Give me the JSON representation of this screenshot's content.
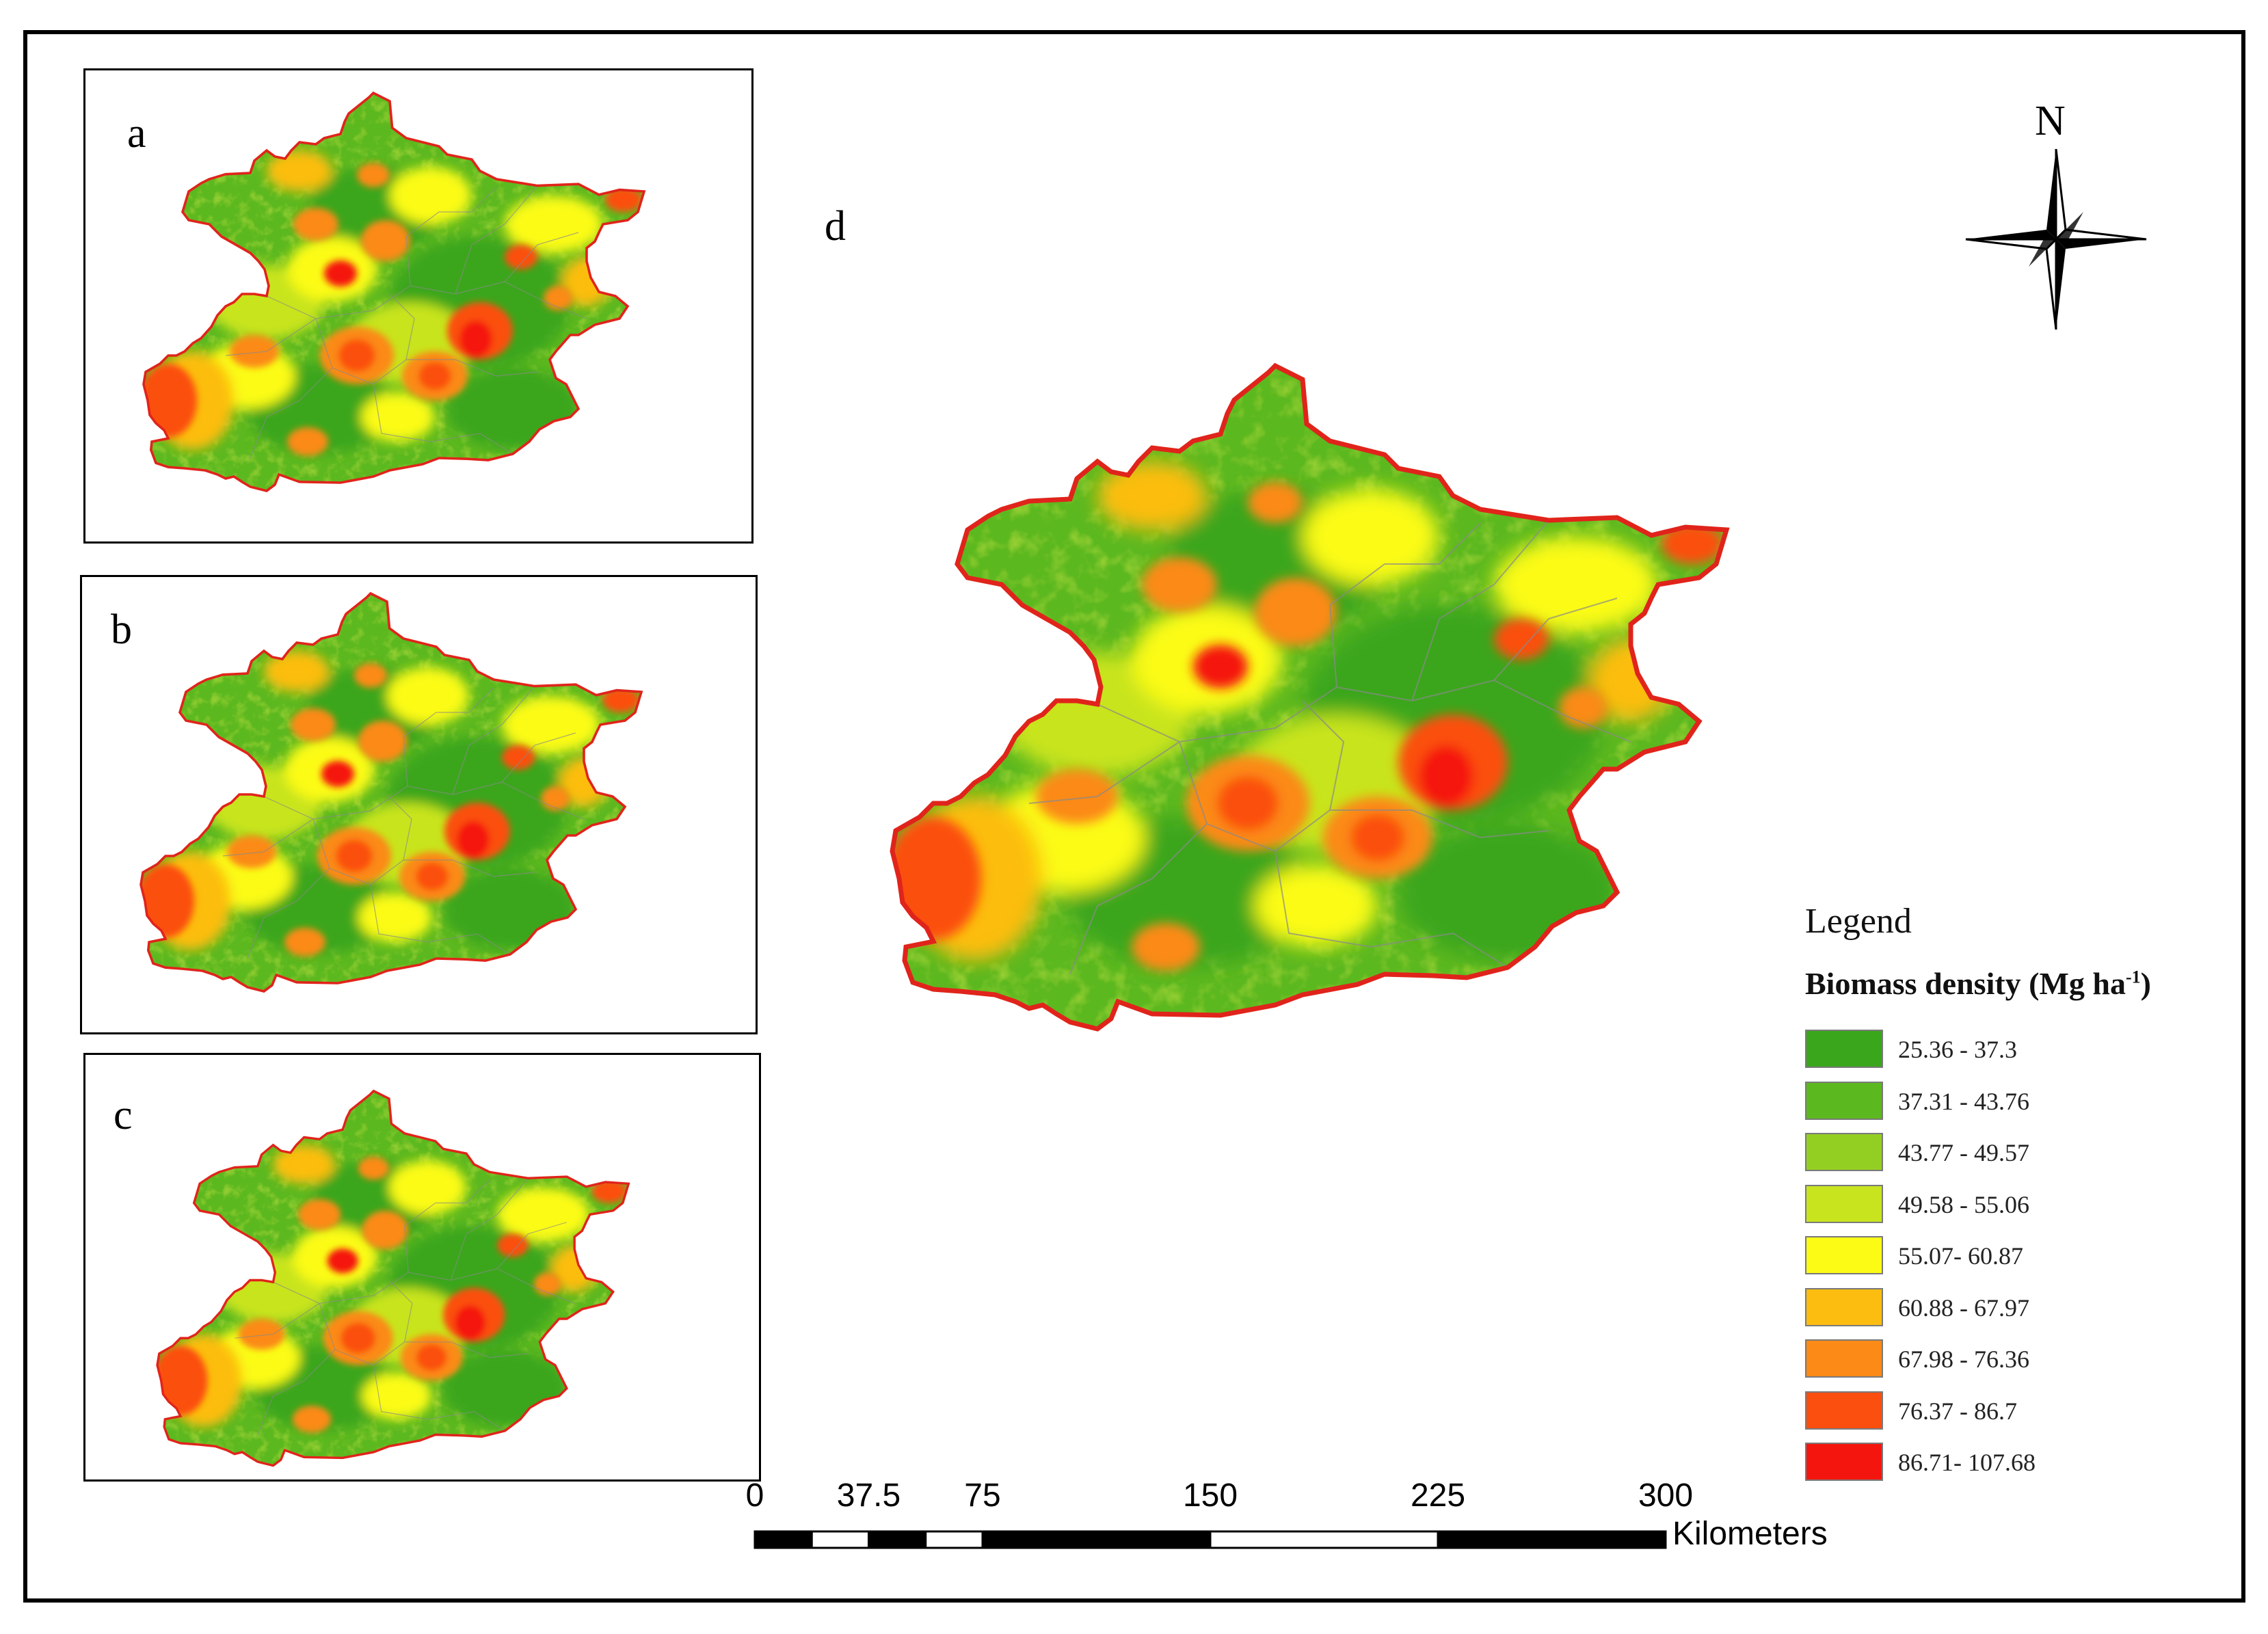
{
  "panels": {
    "a": {
      "label": "a"
    },
    "b": {
      "label": "b"
    },
    "c": {
      "label": "c"
    },
    "d": {
      "label": "d"
    }
  },
  "north_arrow": {
    "label": "N",
    "icon": "north-arrow-compass-icon"
  },
  "legend": {
    "title": "Legend",
    "variable": "Biomass density",
    "unit_prefix": "(Mg ha",
    "unit_exponent": "-1",
    "unit_suffix": ")",
    "classes": [
      {
        "label": "25.36 - 37.3",
        "color": "#3aa61c"
      },
      {
        "label": "37.31 - 43.76",
        "color": "#5cb81f"
      },
      {
        "label": "43.77 - 49.57",
        "color": "#93cf22"
      },
      {
        "label": "49.58 - 55.06",
        "color": "#c8e41f"
      },
      {
        "label": "55.07- 60.87",
        "color": "#fbfb16"
      },
      {
        "label": "60.88 - 67.97",
        "color": "#fcbd10"
      },
      {
        "label": "67.98 - 76.36",
        "color": "#fb8a16"
      },
      {
        "label": "76.37 - 86.7",
        "color": "#fb4f10"
      },
      {
        "label": "86.71- 107.68",
        "color": "#f5150f"
      }
    ]
  },
  "scale_bar": {
    "unit": "Kilometers",
    "ticks": [
      "0",
      "37.5",
      "75",
      "150",
      "225",
      "300"
    ],
    "tick_values": [
      0,
      37.5,
      75,
      150,
      225,
      300
    ]
  },
  "boundary_color": "#e0241b",
  "district_line_color": "#8a8a8a"
}
